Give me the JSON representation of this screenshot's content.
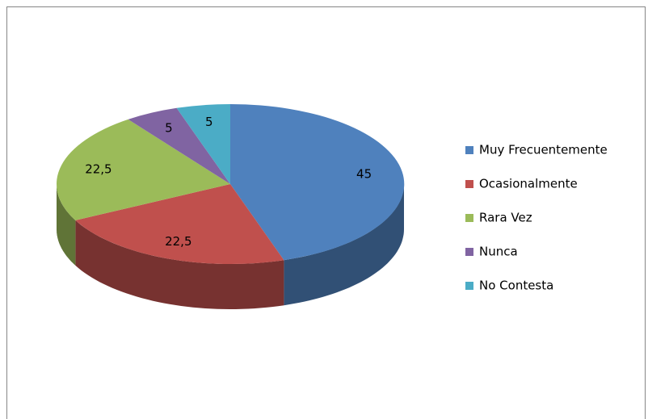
{
  "chart_data": {
    "type": "pie",
    "three_d": true,
    "categories": [
      "Muy Frecuentemente",
      "Ocasionalmente",
      "Rara Vez",
      "Nunca",
      "No Contesta"
    ],
    "values": [
      45,
      22.5,
      22.5,
      5,
      5
    ],
    "value_labels": [
      "45",
      "22,5",
      "22,5",
      "5",
      "5"
    ],
    "colors": [
      "#4f81bd",
      "#c0504d",
      "#9bbb59",
      "#8064a2",
      "#4bacc6"
    ],
    "legend": "right"
  }
}
